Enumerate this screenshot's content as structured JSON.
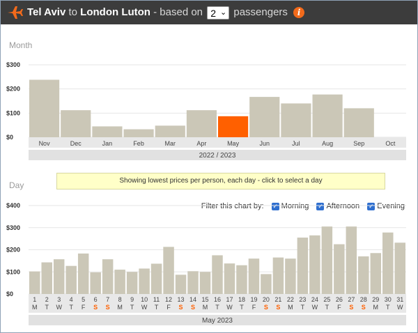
{
  "header": {
    "from": "Tel Aviv",
    "to_word": "to",
    "destination": "London Luton",
    "based_on": "- based on",
    "passengers_value": "2",
    "passengers_label": "passengers",
    "info_glyph": "i"
  },
  "month_section": {
    "label": "Month",
    "year_label": "2022 / 2023"
  },
  "day_section": {
    "label": "Day",
    "month_label": "May 2023"
  },
  "tooltip": "Showing lowest prices per person, each day - click to select a day",
  "filter": {
    "label": "Filter this chart by:",
    "options": [
      "Morning",
      "Afternoon",
      "Evening"
    ]
  },
  "colors": {
    "bar": "#cbc7b7",
    "selected": "#ff6000",
    "weekend": "#ff6000",
    "header": "#3c3c3c"
  },
  "chart_data": [
    {
      "type": "bar",
      "title": "",
      "ylim": [
        0,
        300
      ],
      "yticks": [
        "$300",
        "$200",
        "$100",
        "$0"
      ],
      "categories": [
        "Nov",
        "Dec",
        "Jan",
        "Feb",
        "Mar",
        "Apr",
        "May",
        "Jun",
        "Jul",
        "Aug",
        "Sep",
        "Oct"
      ],
      "values": [
        238,
        112,
        45,
        33,
        48,
        112,
        87,
        167,
        140,
        177,
        120,
        0
      ],
      "selected": "May",
      "grid": true
    },
    {
      "type": "bar",
      "title": "",
      "ylim": [
        0,
        400
      ],
      "yticks": [
        "$400",
        "$300",
        "$200",
        "$100",
        "$0"
      ],
      "days": [
        "1",
        "2",
        "3",
        "4",
        "5",
        "6",
        "7",
        "8",
        "9",
        "10",
        "11",
        "12",
        "13",
        "14",
        "15",
        "16",
        "17",
        "18",
        "19",
        "20",
        "21",
        "22",
        "23",
        "24",
        "25",
        "26",
        "27",
        "28",
        "29",
        "30",
        "31"
      ],
      "weekdays": [
        "M",
        "T",
        "W",
        "T",
        "F",
        "S",
        "S",
        "M",
        "T",
        "W",
        "T",
        "F",
        "S",
        "S",
        "M",
        "T",
        "W",
        "T",
        "F",
        "S",
        "S",
        "M",
        "T",
        "W",
        "T",
        "F",
        "S",
        "S",
        "M",
        "T",
        "W"
      ],
      "values": [
        102,
        143,
        157,
        127,
        183,
        98,
        157,
        110,
        100,
        115,
        137,
        213,
        87,
        103,
        100,
        175,
        138,
        130,
        160,
        90,
        165,
        160,
        255,
        265,
        305,
        225,
        305,
        170,
        185,
        278,
        232
      ],
      "grid": true
    }
  ]
}
